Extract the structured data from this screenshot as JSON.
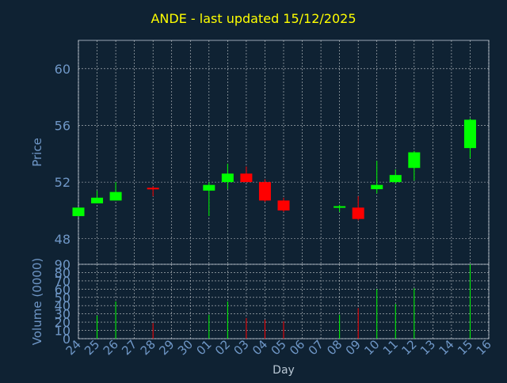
{
  "chart_data": {
    "type": "candlestick",
    "title": "ANDE - last updated 15/12/2025",
    "price_panel": {
      "ylabel": "Price",
      "ylim": [
        46.2,
        62
      ],
      "yticks": [
        48,
        52,
        56,
        60
      ]
    },
    "volume_panel": {
      "ylabel": "Volume (0000)",
      "ylim": [
        0,
        90
      ],
      "yticks": [
        0,
        10,
        20,
        30,
        40,
        50,
        60,
        70,
        80,
        90
      ]
    },
    "xlabel": "Day",
    "x_ticks": [
      "24",
      "25",
      "26",
      "27",
      "28",
      "29",
      "30",
      "01",
      "02",
      "03",
      "04",
      "05",
      "06",
      "07",
      "08",
      "09",
      "10",
      "11",
      "12",
      "13",
      "14",
      "15",
      "16"
    ],
    "candles": [
      {
        "x": "24",
        "open": 49.6,
        "high": 50.2,
        "low": 49.6,
        "close": 50.2,
        "volume": 0
      },
      {
        "x": "25",
        "open": 50.5,
        "high": 51.4,
        "low": 50.5,
        "close": 50.9,
        "volume": 28
      },
      {
        "x": "26",
        "open": 50.7,
        "high": 52.0,
        "low": 50.7,
        "close": 51.3,
        "volume": 45
      },
      {
        "x": "28",
        "open": 51.6,
        "high": 51.7,
        "low": 51.0,
        "close": 51.5,
        "volume": 19
      },
      {
        "x": "01",
        "open": 51.4,
        "high": 52.0,
        "low": 49.6,
        "close": 51.8,
        "volume": 29
      },
      {
        "x": "02",
        "open": 52.0,
        "high": 53.3,
        "low": 51.5,
        "close": 52.6,
        "volume": 45
      },
      {
        "x": "03",
        "open": 52.6,
        "high": 53.1,
        "low": 52.0,
        "close": 52.0,
        "volume": 25
      },
      {
        "x": "04",
        "open": 52.0,
        "high": 52.2,
        "low": 50.6,
        "close": 50.7,
        "volume": 23
      },
      {
        "x": "05",
        "open": 50.7,
        "high": 50.9,
        "low": 49.9,
        "close": 50.0,
        "volume": 21
      },
      {
        "x": "08",
        "open": 50.2,
        "high": 50.4,
        "low": 49.9,
        "close": 50.3,
        "volume": 29
      },
      {
        "x": "09",
        "open": 50.2,
        "high": 51.0,
        "low": 49.3,
        "close": 49.4,
        "volume": 37
      },
      {
        "x": "10",
        "open": 51.5,
        "high": 53.5,
        "low": 51.2,
        "close": 51.8,
        "volume": 60
      },
      {
        "x": "11",
        "open": 52.0,
        "high": 52.9,
        "low": 51.9,
        "close": 52.5,
        "volume": 42
      },
      {
        "x": "12",
        "open": 53.0,
        "high": 54.2,
        "low": 52.1,
        "close": 54.1,
        "volume": 61
      },
      {
        "x": "15",
        "open": 54.4,
        "high": 56.5,
        "low": 53.7,
        "close": 56.4,
        "volume": 90
      }
    ],
    "grid": true,
    "colors": {
      "background": "#0f2233",
      "title": "#ffff00",
      "axis_text": "#6f97c7",
      "grid": "#ffffff",
      "up": "#00ff00",
      "down": "#ff0000"
    }
  }
}
